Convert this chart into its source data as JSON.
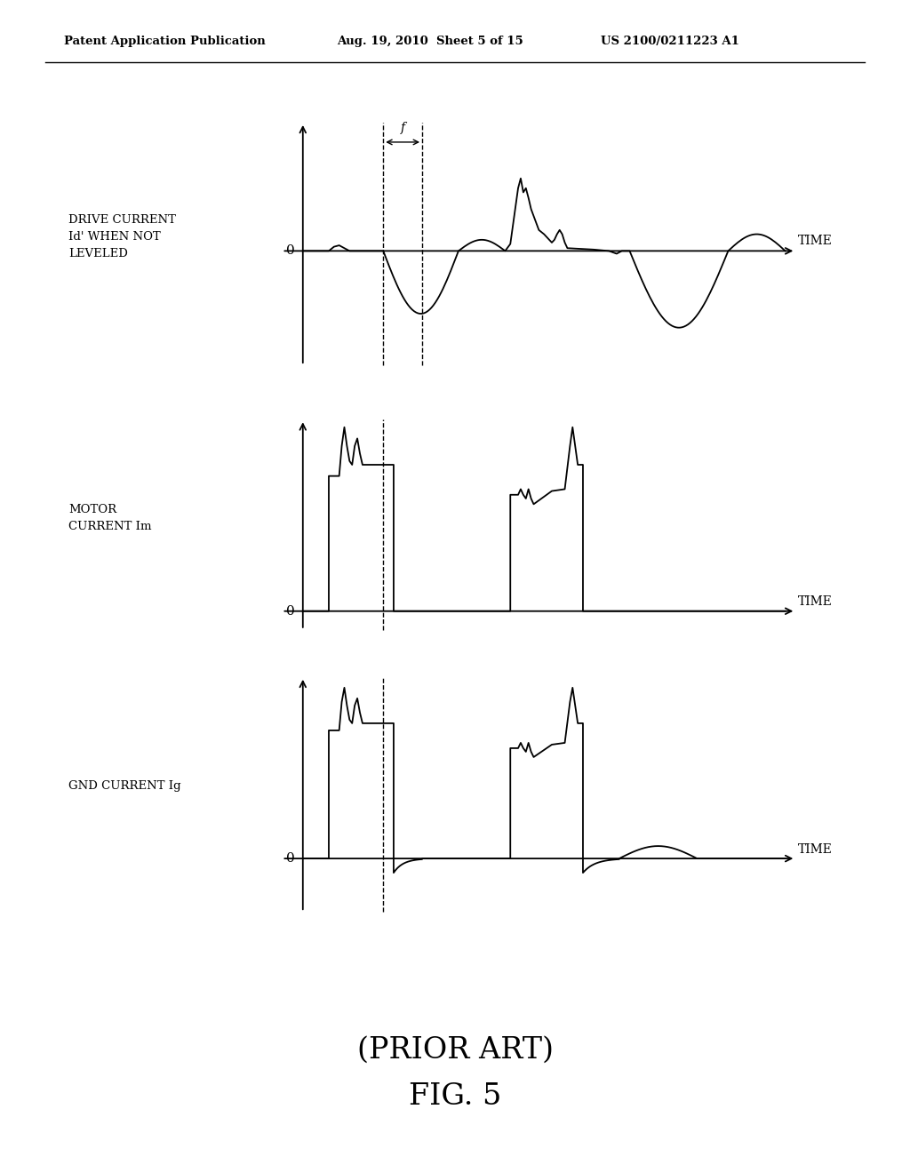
{
  "title": "FIG. 5",
  "subtitle": "(PRIOR ART)",
  "header_left": "Patent Application Publication",
  "header_center": "Aug. 19, 2010  Sheet 5 of 15",
  "header_right": "US 2100/0211223 A1",
  "label1": "DRIVE CURRENT\nId' WHEN NOT\nLEVELED",
  "label2": "MOTOR\nCURRENT Im",
  "label3": "GND CURRENT Ig",
  "time_label": "TIME",
  "f_label": "f",
  "bg_color": "#ffffff",
  "text_color": "#000000"
}
